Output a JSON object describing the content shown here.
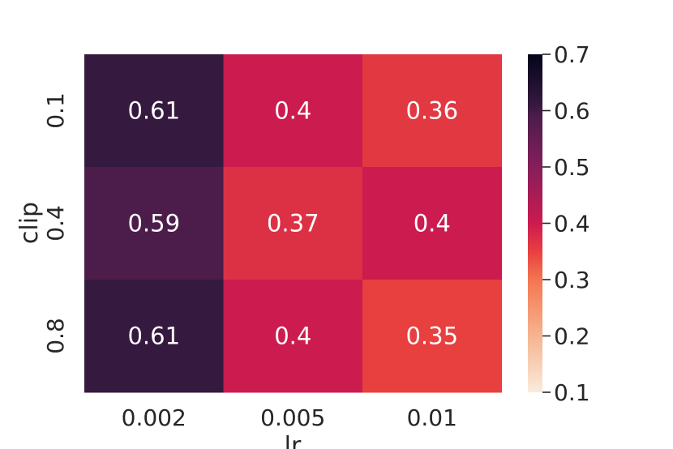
{
  "chart_data": {
    "type": "heatmap",
    "xlabel": "lr",
    "ylabel": "clip",
    "x_categories": [
      "0.002",
      "0.005",
      "0.01"
    ],
    "y_categories": [
      "0.1",
      "0.4",
      "0.8"
    ],
    "values": [
      [
        0.61,
        0.4,
        0.36
      ],
      [
        0.59,
        0.37,
        0.4
      ],
      [
        0.61,
        0.4,
        0.35
      ]
    ],
    "cell_labels": [
      [
        "0.61",
        "0.4",
        "0.36"
      ],
      [
        "0.59",
        "0.37",
        "0.4"
      ],
      [
        "0.61",
        "0.4",
        "0.35"
      ]
    ],
    "colorbar": {
      "min": 0.1,
      "max": 0.7,
      "ticks": [
        "0.1",
        "0.2",
        "0.3",
        "0.4",
        "0.5",
        "0.6",
        "0.7"
      ],
      "colormap": "rocket_r",
      "stops": [
        {
          "v": 0.1,
          "color": "#faebdd"
        },
        {
          "v": 0.2,
          "color": "#f6b48f"
        },
        {
          "v": 0.3,
          "color": "#f37651"
        },
        {
          "v": 0.35,
          "color": "#e83f3f"
        },
        {
          "v": 0.4,
          "color": "#cb1b4f"
        },
        {
          "v": 0.5,
          "color": "#841e5a"
        },
        {
          "v": 0.59,
          "color": "#4c1d4b"
        },
        {
          "v": 0.61,
          "color": "#35193e"
        },
        {
          "v": 0.7,
          "color": "#03051a"
        }
      ]
    }
  }
}
